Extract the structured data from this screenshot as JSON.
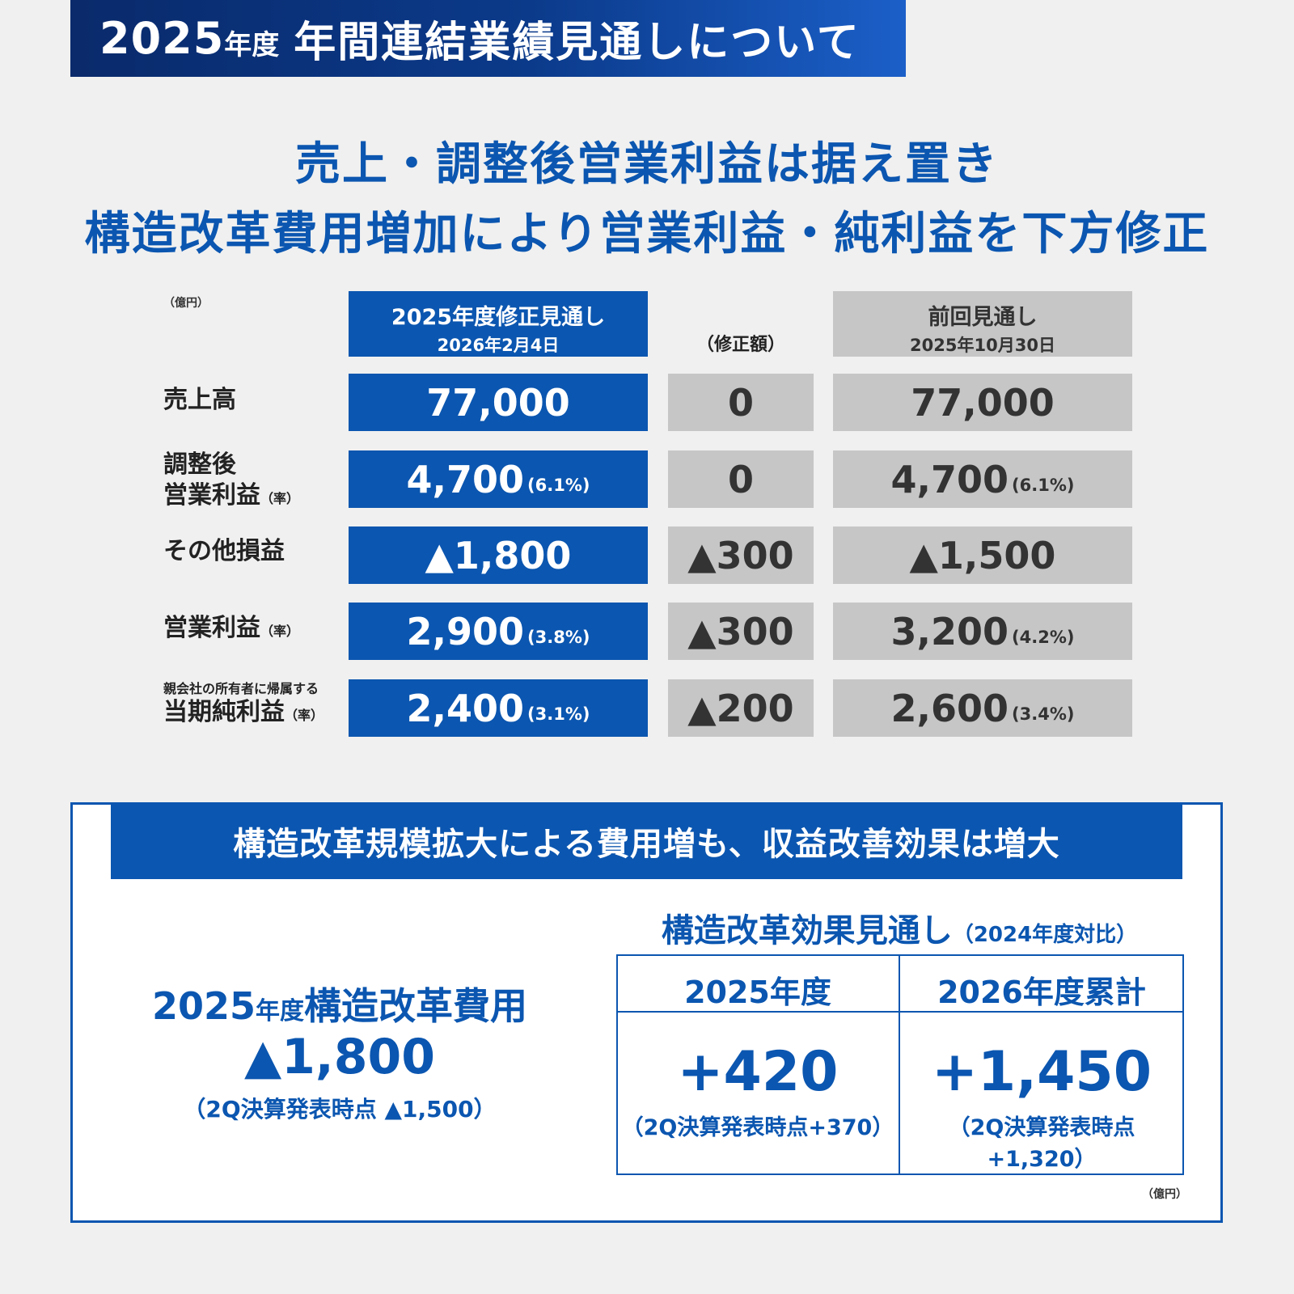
{
  "header": {
    "year": "2025",
    "nendo": "年度",
    "title": "年間連結業績見通しについて"
  },
  "headline": {
    "line1": "売上・調整後営業利益は据え置き",
    "line2": "構造改革費用増加により営業利益・純利益を下方修正"
  },
  "table": {
    "unit": "（億円）",
    "col_revised": {
      "title": "2025年度修正見通し",
      "date": "2026年2月4日"
    },
    "col_revision": {
      "title": "（修正額）"
    },
    "col_previous": {
      "title": "前回見通し",
      "date": "2025年10月30日"
    },
    "rows": [
      {
        "label_line1": "売上高",
        "label_line2": "",
        "rate": "",
        "small": "",
        "revised": "77,000",
        "revised_pct": "",
        "revision": "0",
        "previous": "77,000",
        "previous_pct": ""
      },
      {
        "label_line1": "調整後",
        "label_line2": "営業利益",
        "rate": "（率）",
        "small": "",
        "revised": "4,700",
        "revised_pct": "(6.1%)",
        "revision": "0",
        "previous": "4,700",
        "previous_pct": "(6.1%)"
      },
      {
        "label_line1": "その他損益",
        "label_line2": "",
        "rate": "",
        "small": "",
        "revised": "▲1,800",
        "revised_pct": "",
        "revision": "▲300",
        "previous": "▲1,500",
        "previous_pct": ""
      },
      {
        "label_line1": "営業利益",
        "label_line2": "",
        "rate": "（率）",
        "small": "",
        "revised": "2,900",
        "revised_pct": "(3.8%)",
        "revision": "▲300",
        "previous": "3,200",
        "previous_pct": "(4.2%)"
      },
      {
        "label_line1": "",
        "label_line2": "当期純利益",
        "rate": "（率）",
        "small": "親会社の所有者に帰属する",
        "revised": "2,400",
        "revised_pct": "(3.1%)",
        "revision": "▲200",
        "previous": "2,600",
        "previous_pct": "(3.4%)"
      }
    ]
  },
  "box": {
    "title": "構造改革規模拡大による費用増も、収益改善効果は増大",
    "cost": {
      "year": "2025",
      "nendo": "年度",
      "label": "構造改革費用",
      "value": "▲1,800",
      "note": "（2Q決算発表時点 ▲1,500）"
    },
    "effect": {
      "title": "構造改革効果見通し",
      "title_sub": "（2024年度対比）",
      "col1_head": "2025年度",
      "col1_value": "+420",
      "col1_note": "（2Q決算発表時点+370）",
      "col2_head": "2026年度累計",
      "col2_value": "+1,450",
      "col2_note": "（2Q決算発表時点+1,320）"
    },
    "unit": "（億円）"
  },
  "colors": {
    "brand_blue": "#0b56b0",
    "banner_dark": "#0a2a6b",
    "cell_gray": "#c6c6c6",
    "background": "#f0f0f0"
  }
}
